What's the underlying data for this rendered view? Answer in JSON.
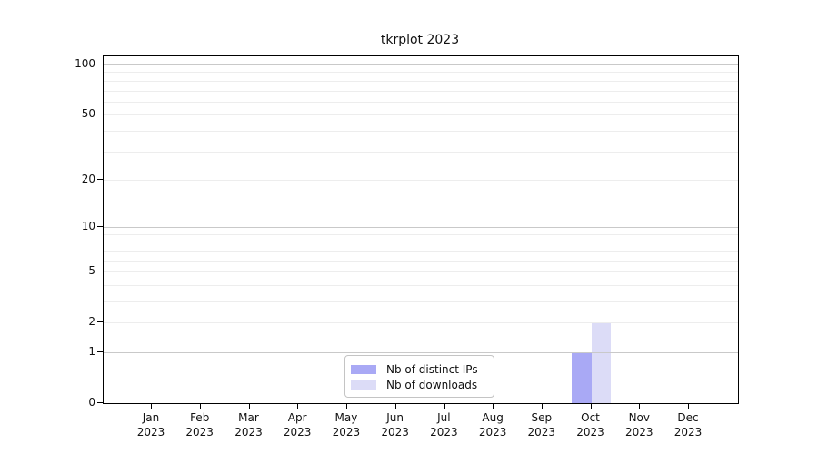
{
  "title": "tkrplot 2023",
  "chart_data": {
    "type": "bar",
    "title": "tkrplot 2023",
    "categories": [
      "Jan",
      "Feb",
      "Mar",
      "Apr",
      "May",
      "Jun",
      "Jul",
      "Aug",
      "Sep",
      "Oct",
      "Nov",
      "Dec"
    ],
    "x_year_label": "2023",
    "series": [
      {
        "name": "Nb of distinct IPs",
        "color": "#a9a9f5",
        "values": [
          0,
          0,
          0,
          0,
          0,
          0,
          0,
          0,
          0,
          1,
          0,
          0
        ]
      },
      {
        "name": "Nb of downloads",
        "color": "#dcdcf7",
        "values": [
          0,
          0,
          0,
          0,
          0,
          0,
          0,
          0,
          0,
          2,
          0,
          0
        ]
      }
    ],
    "y_ticks": [
      0,
      1,
      2,
      5,
      10,
      20,
      50,
      100
    ],
    "grid_major_values": [
      1,
      10,
      100
    ],
    "grid_minor_values": [
      2,
      3,
      4,
      5,
      6,
      7,
      8,
      9,
      20,
      30,
      40,
      50,
      60,
      70,
      80,
      90
    ],
    "y_scale": "log10(1+x)",
    "ylim": [
      0,
      100
    ],
    "grid": "horizontal",
    "legend_position": "lower-center-inside"
  }
}
